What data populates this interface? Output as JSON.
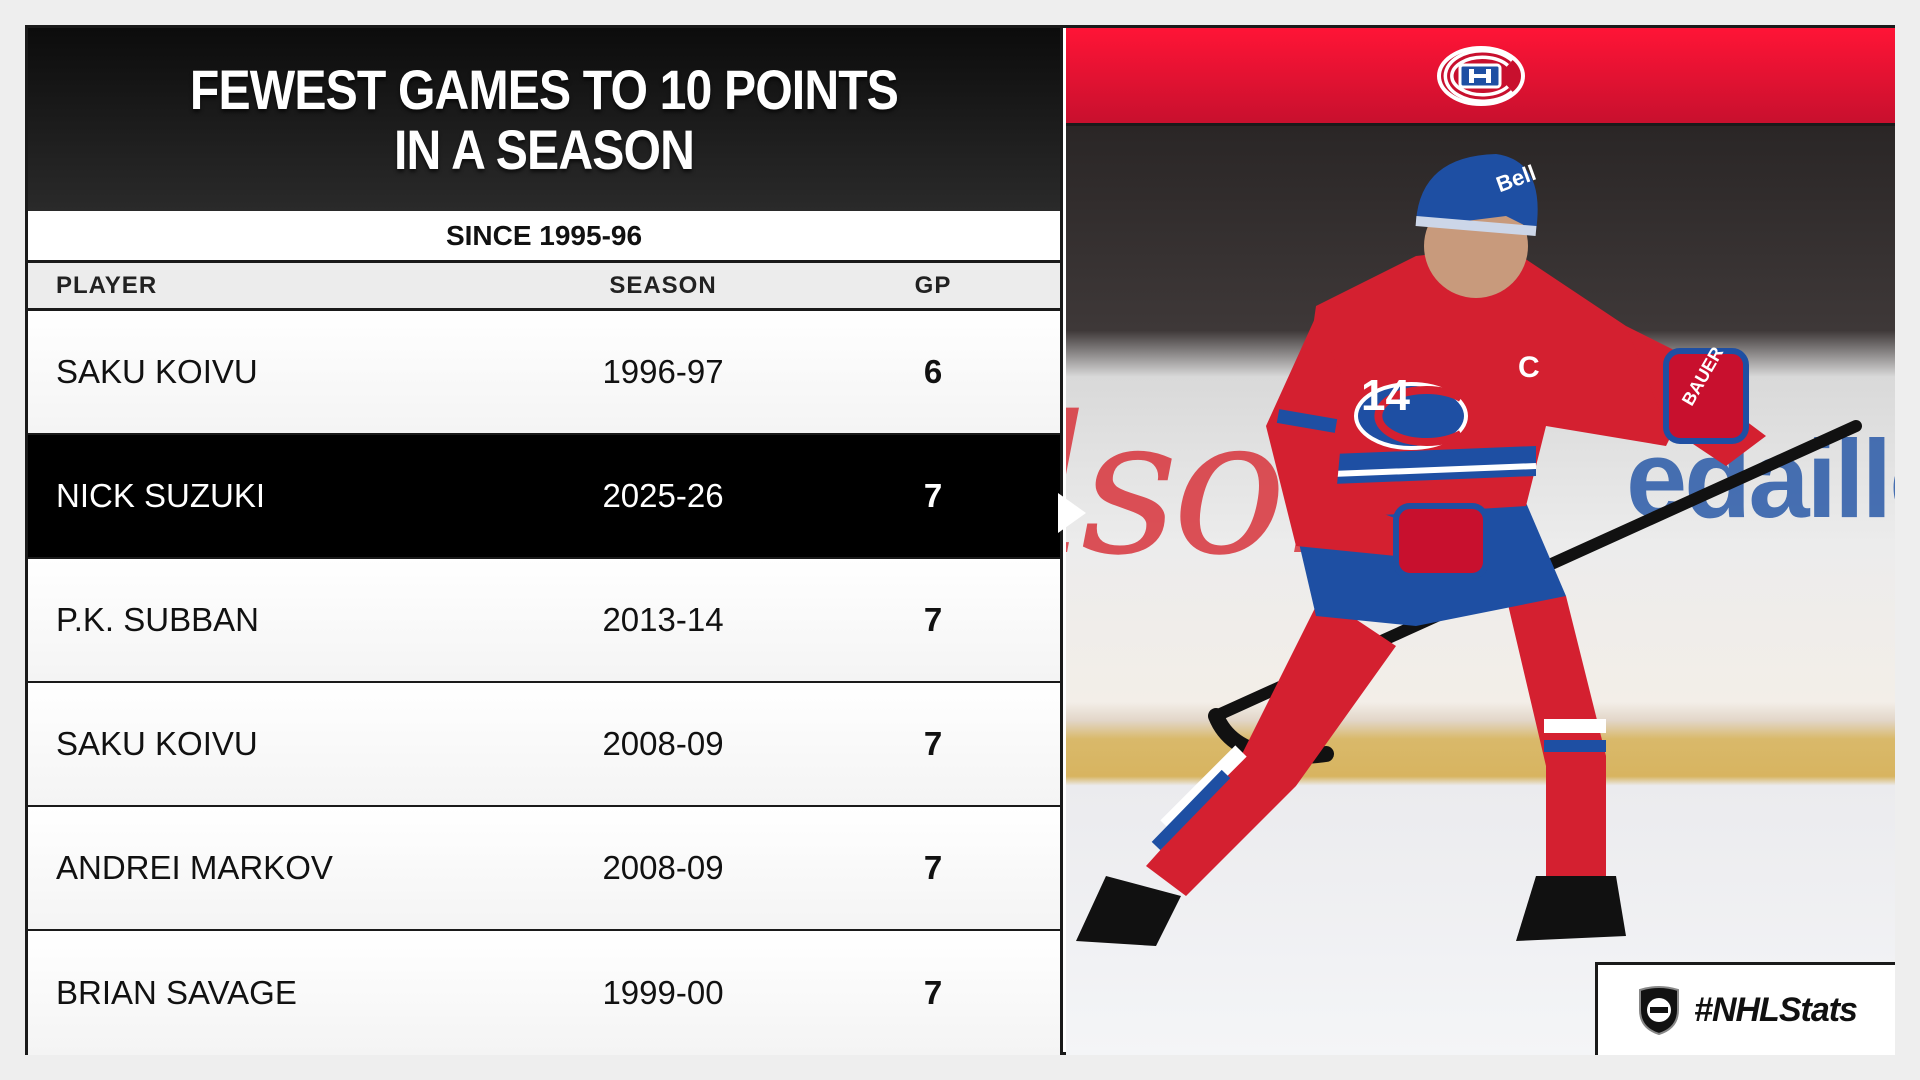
{
  "title": "FEWEST GAMES TO 10 POINTS IN A SEASON",
  "subtitle": "SINCE 1995-96",
  "columns": {
    "player": "PLAYER",
    "season": "SEASON",
    "gp": "GP"
  },
  "rows": [
    {
      "player": "SAKU KOIVU",
      "season": "1996-97",
      "gp": "6",
      "highlight": false
    },
    {
      "player": "NICK SUZUKI",
      "season": "2025-26",
      "gp": "7",
      "highlight": true
    },
    {
      "player": "P.K. SUBBAN",
      "season": "2013-14",
      "gp": "7",
      "highlight": false
    },
    {
      "player": "SAKU KOIVU",
      "season": "2008-09",
      "gp": "7",
      "highlight": false
    },
    {
      "player": "ANDREI MARKOV",
      "season": "2008-09",
      "gp": "7",
      "highlight": false
    },
    {
      "player": "BRIAN SAVAGE",
      "season": "1999-00",
      "gp": "7",
      "highlight": false
    }
  ],
  "photo": {
    "jersey_number": "14",
    "captain_letter": "C",
    "helmet_text": "Bell",
    "glove_text": "BAUER",
    "board_text_left": "lson",
    "board_text_right": "edailles"
  },
  "hashtag": "#NHLStats",
  "colors": {
    "canadiens_red": "#c8102e",
    "canadiens_blue": "#1e4fa3",
    "highlight_row": "#000000"
  },
  "icons": {
    "team_logo": "canadiens-logo-icon",
    "league_logo": "nhl-shield-icon"
  }
}
